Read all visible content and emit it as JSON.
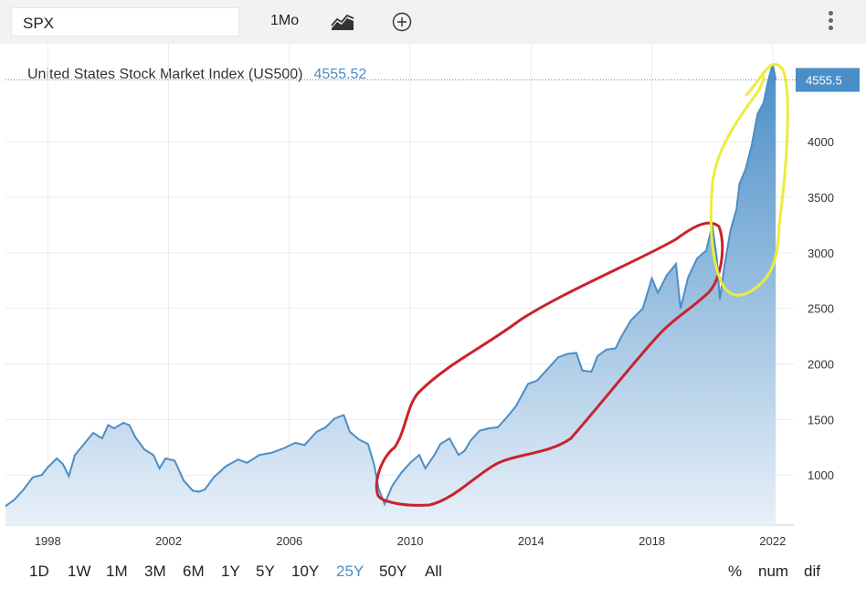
{
  "toolbar": {
    "symbol": "SPX",
    "period": "1Mo",
    "chart_type_icon": "line-chart-icon",
    "add_icon": "plus-circle-icon",
    "menu_icon": "kebab-menu-icon"
  },
  "chart_data": {
    "type": "area",
    "title": "United States Stock Market Index (US500)",
    "last_value_label": "4555.52",
    "last_value_tag": "4555.5",
    "x_tick_labels": [
      "1998",
      "2002",
      "2006",
      "2010",
      "2014",
      "2018",
      "2022"
    ],
    "x_ticks": [
      1998,
      2002,
      2006,
      2010,
      2014,
      2018,
      2022
    ],
    "y_ticks": [
      1000,
      1500,
      2000,
      2500,
      3000,
      3500,
      4000
    ],
    "xlim": [
      1996.6,
      2022.7
    ],
    "ylim": [
      550,
      4880
    ],
    "grid": true,
    "y_axis_position": "right",
    "colors": {
      "line": "#4a8ec7",
      "fill_top": "#4a8ec7",
      "fill_bottom": "#e8f0f9",
      "red_annotation": "#c8232c",
      "yellow_annotation": "#ecec3c"
    },
    "series": [
      {
        "x": [
          1996.6,
          1996.9,
          1997.2,
          1997.5,
          1997.8,
          1998.0,
          1998.3,
          1998.5,
          1998.7,
          1998.9,
          1999.2,
          1999.5,
          1999.8,
          2000.0,
          2000.2,
          2000.5,
          2000.7,
          2000.9,
          2001.2,
          2001.5,
          2001.7,
          2001.9,
          2002.2,
          2002.5,
          2002.8,
          2003.0,
          2003.2,
          2003.5,
          2003.9,
          2004.3,
          2004.6,
          2005.0,
          2005.4,
          2005.8,
          2006.2,
          2006.5,
          2006.9,
          2007.2,
          2007.5,
          2007.8,
          2008.0,
          2008.3,
          2008.6,
          2008.8,
          2008.95,
          2009.15,
          2009.4,
          2009.7,
          2010.0,
          2010.3,
          2010.5,
          2010.8,
          2011.0,
          2011.3,
          2011.6,
          2011.8,
          2012.0,
          2012.3,
          2012.6,
          2012.9,
          2013.2,
          2013.5,
          2013.9,
          2014.2,
          2014.6,
          2014.9,
          2015.2,
          2015.5,
          2015.7,
          2016.0,
          2016.2,
          2016.5,
          2016.8,
          2017.0,
          2017.3,
          2017.7,
          2018.0,
          2018.2,
          2018.5,
          2018.8,
          2018.95,
          2019.2,
          2019.5,
          2019.8,
          2020.0,
          2020.15,
          2020.25,
          2020.4,
          2020.6,
          2020.8,
          2020.9,
          2021.1,
          2021.3,
          2021.5,
          2021.7,
          2021.85,
          2022.0,
          2022.1
        ],
        "y": [
          720,
          780,
          870,
          980,
          1000,
          1070,
          1150,
          1100,
          990,
          1180,
          1280,
          1380,
          1330,
          1450,
          1420,
          1470,
          1450,
          1340,
          1230,
          1180,
          1060,
          1150,
          1130,
          950,
          860,
          850,
          870,
          980,
          1080,
          1140,
          1110,
          1180,
          1200,
          1240,
          1290,
          1270,
          1390,
          1430,
          1510,
          1540,
          1390,
          1320,
          1280,
          1100,
          880,
          740,
          900,
          1020,
          1110,
          1180,
          1060,
          1180,
          1280,
          1330,
          1180,
          1220,
          1310,
          1400,
          1420,
          1430,
          1520,
          1620,
          1820,
          1850,
          1970,
          2060,
          2090,
          2100,
          1940,
          1930,
          2070,
          2130,
          2140,
          2250,
          2390,
          2500,
          2770,
          2640,
          2800,
          2900,
          2500,
          2780,
          2950,
          3020,
          3250,
          2950,
          2580,
          2880,
          3200,
          3390,
          3620,
          3750,
          3960,
          4250,
          4350,
          4550,
          4700,
          4555
        ]
      }
    ]
  },
  "ranges": [
    "1D",
    "1W",
    "1M",
    "3M",
    "6M",
    "1Y",
    "5Y",
    "10Y",
    "25Y",
    "50Y",
    "All"
  ],
  "active_range": "25Y",
  "modes": [
    "%",
    "num",
    "dif"
  ]
}
